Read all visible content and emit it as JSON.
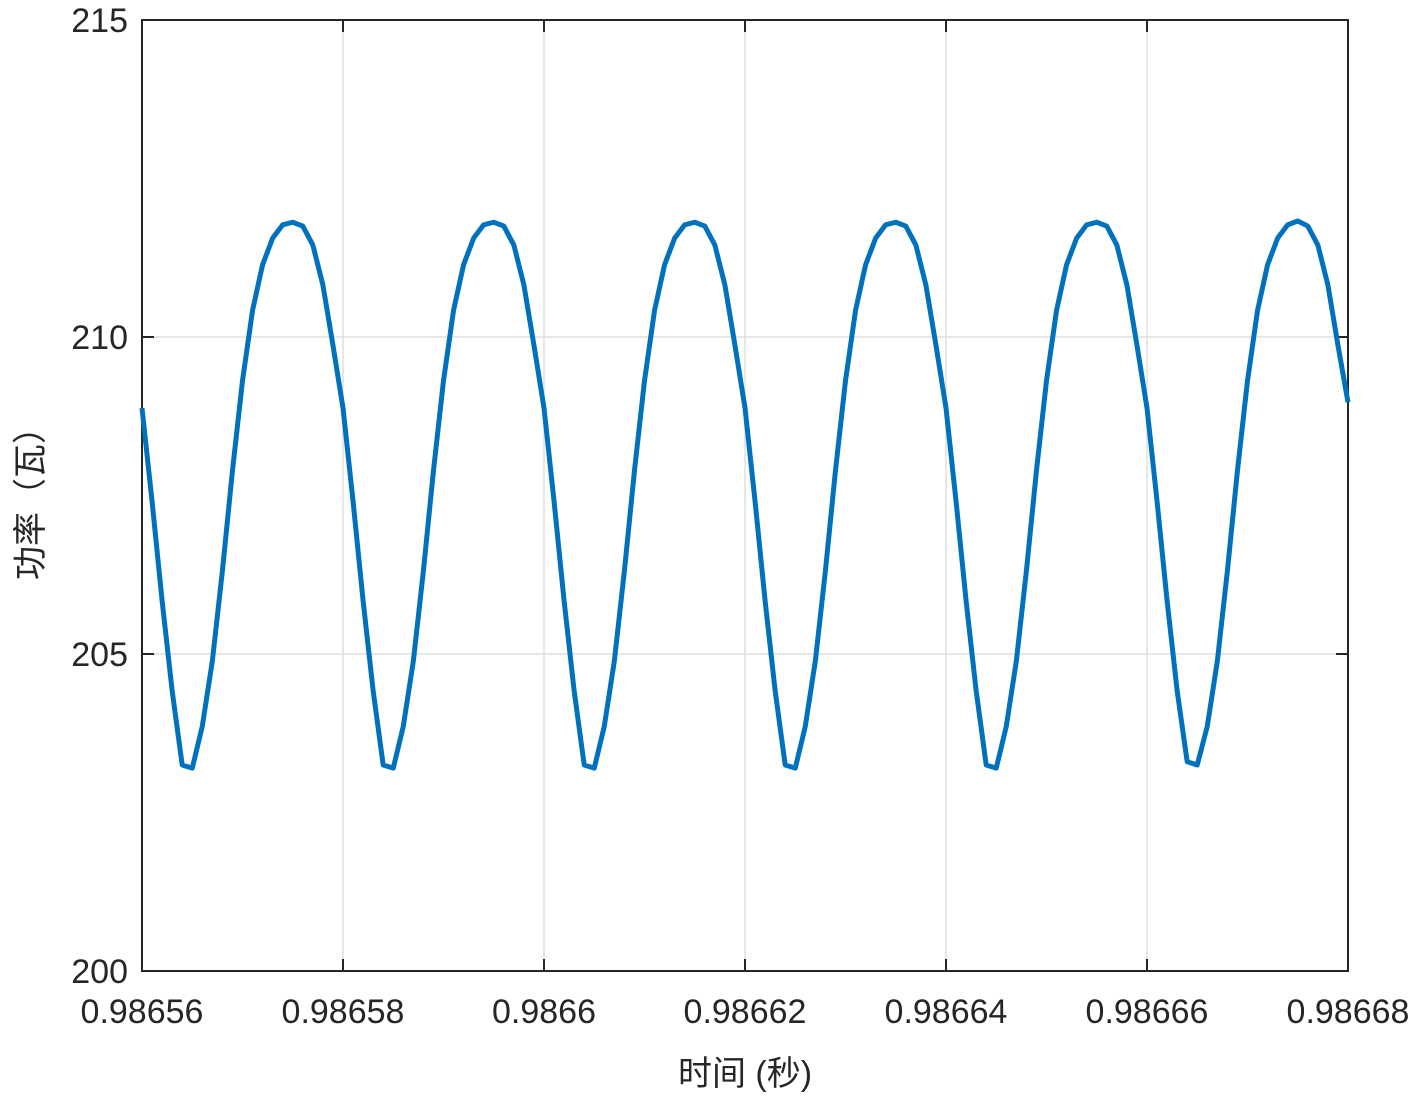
{
  "chart_data": {
    "type": "line",
    "xlabel": "时间 (秒)",
    "ylabel": "功率（瓦）",
    "x": [
      0.98656,
      0.986561,
      0.986562,
      0.986563,
      0.986564,
      0.986565,
      0.986566,
      0.986567,
      0.986568,
      0.986569,
      0.98657,
      0.986571,
      0.986572,
      0.986573,
      0.986574,
      0.986575,
      0.986576,
      0.986577,
      0.986578,
      0.986579,
      0.98658,
      0.986581,
      0.986582,
      0.986583,
      0.986584,
      0.986585,
      0.986586,
      0.986587,
      0.986588,
      0.986589,
      0.98659,
      0.986591,
      0.986592,
      0.986593,
      0.986594,
      0.986595,
      0.986596,
      0.986597,
      0.986598,
      0.986599,
      0.9866,
      0.986601,
      0.986602,
      0.986603,
      0.986604,
      0.986605,
      0.986606,
      0.986607,
      0.986608,
      0.986609,
      0.98661,
      0.986611,
      0.986612,
      0.986613,
      0.986614,
      0.986615,
      0.986616,
      0.986617,
      0.986618,
      0.986619,
      0.98662,
      0.986621,
      0.986622,
      0.986623,
      0.986624,
      0.986625,
      0.986626,
      0.986627,
      0.986628,
      0.986629,
      0.98663,
      0.986631,
      0.986632,
      0.986633,
      0.986634,
      0.986635,
      0.986636,
      0.986637,
      0.986638,
      0.986639,
      0.98664,
      0.986641,
      0.986642,
      0.986643,
      0.986644,
      0.986645,
      0.986646,
      0.986647,
      0.986648,
      0.986649,
      0.98665,
      0.986651,
      0.986652,
      0.986653,
      0.986654,
      0.986655,
      0.986656,
      0.986657,
      0.986658,
      0.986659,
      0.98666,
      0.986661,
      0.986662,
      0.986663,
      0.986664,
      0.986665,
      0.986666,
      0.986667,
      0.986668,
      0.986669,
      0.98667,
      0.986671,
      0.986672,
      0.986673,
      0.986674,
      0.986675,
      0.986676,
      0.986677,
      0.986678,
      0.986679,
      0.98668
    ],
    "series": [
      {
        "color": "#0072bd",
        "values": [
          208.88,
          207.41,
          205.84,
          204.42,
          203.25,
          203.2,
          203.86,
          204.89,
          206.31,
          207.89,
          209.31,
          210.42,
          211.14,
          211.56,
          211.77,
          211.81,
          211.75,
          211.45,
          210.82,
          209.87,
          208.88,
          207.41,
          205.84,
          204.42,
          203.25,
          203.2,
          203.86,
          204.89,
          206.31,
          207.89,
          209.31,
          210.42,
          211.14,
          211.56,
          211.77,
          211.81,
          211.75,
          211.45,
          210.82,
          209.87,
          208.88,
          207.41,
          205.84,
          204.42,
          203.25,
          203.2,
          203.86,
          204.89,
          206.31,
          207.89,
          209.31,
          210.42,
          211.14,
          211.56,
          211.77,
          211.81,
          211.75,
          211.45,
          210.82,
          209.87,
          208.88,
          207.41,
          205.84,
          204.42,
          203.25,
          203.2,
          203.86,
          204.89,
          206.31,
          207.89,
          209.31,
          210.42,
          211.14,
          211.56,
          211.77,
          211.81,
          211.75,
          211.45,
          210.82,
          209.87,
          208.88,
          207.41,
          205.84,
          204.42,
          203.25,
          203.2,
          203.86,
          204.89,
          206.31,
          207.89,
          209.31,
          210.42,
          211.14,
          211.56,
          211.77,
          211.81,
          211.75,
          211.45,
          210.82,
          209.87,
          208.88,
          207.41,
          205.84,
          204.42,
          203.3,
          203.25,
          203.86,
          204.89,
          206.31,
          207.89,
          209.31,
          210.42,
          211.14,
          211.56,
          211.77,
          211.83,
          211.75,
          211.45,
          210.82,
          209.87,
          208.97
        ]
      }
    ],
    "xlim": [
      0.98656,
      0.98668
    ],
    "xticks": [
      0.98656,
      0.98658,
      0.9866,
      0.98662,
      0.98664,
      0.98666,
      0.98668
    ],
    "ylim": [
      200,
      215
    ],
    "yticks": [
      200,
      205,
      210,
      215
    ],
    "grid": true
  }
}
